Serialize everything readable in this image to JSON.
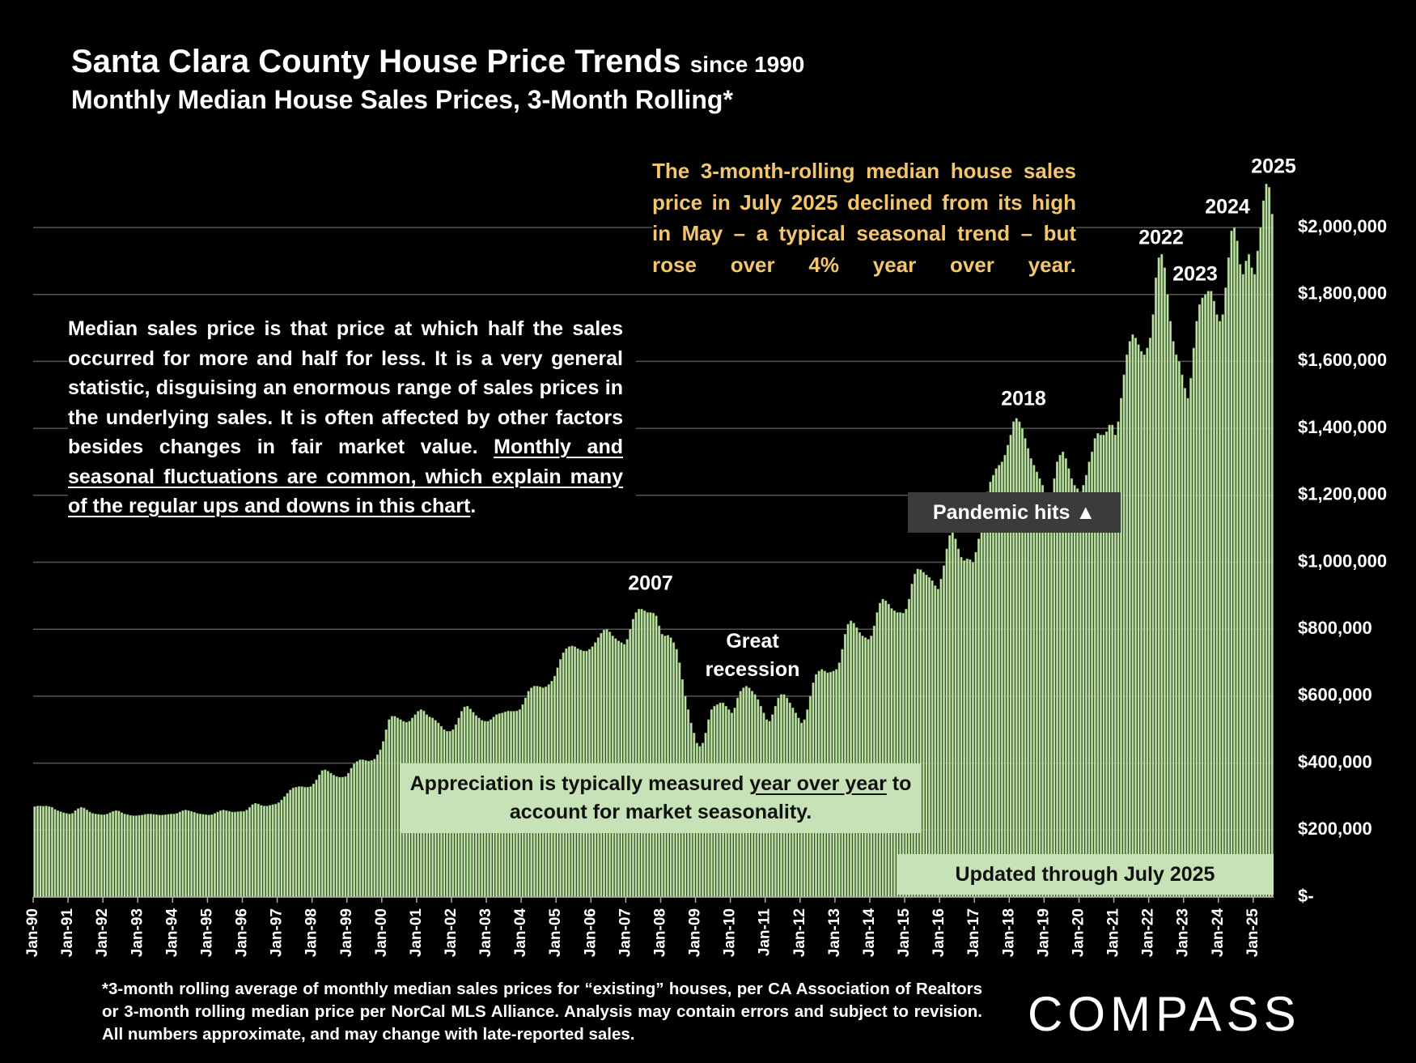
{
  "chart_data": {
    "type": "bar",
    "title": "Santa Clara County House Price Trends",
    "title_suffix": "since 1990",
    "subtitle": "Monthly Median House Sales Prices, 3-Month Rolling*",
    "color": "#c2e2ab",
    "grid": true,
    "ylim": [
      0,
      2200000
    ],
    "yticks": [
      {
        "value": 0,
        "label": "$-"
      },
      {
        "value": 200000,
        "label": "$200,000"
      },
      {
        "value": 400000,
        "label": "$400,000"
      },
      {
        "value": 600000,
        "label": "$600,000"
      },
      {
        "value": 800000,
        "label": "$800,000"
      },
      {
        "value": 1000000,
        "label": "$1,000,000"
      },
      {
        "value": 1200000,
        "label": "$1,200,000"
      },
      {
        "value": 1400000,
        "label": "$1,400,000"
      },
      {
        "value": 1600000,
        "label": "$1,600,000"
      },
      {
        "value": 1800000,
        "label": "$1,800,000"
      },
      {
        "value": 2000000,
        "label": "$2,000,000"
      }
    ],
    "categories": [
      "Jan-90",
      null,
      null,
      null,
      null,
      null,
      null,
      null,
      null,
      null,
      null,
      null,
      "Jan-91",
      null,
      null,
      null,
      null,
      null,
      null,
      null,
      null,
      null,
      null,
      null,
      "Jan-92",
      null,
      null,
      null,
      null,
      null,
      null,
      null,
      null,
      null,
      null,
      null,
      "Jan-93",
      null,
      null,
      null,
      null,
      null,
      null,
      null,
      null,
      null,
      null,
      null,
      "Jan-94",
      null,
      null,
      null,
      null,
      null,
      null,
      null,
      null,
      null,
      null,
      null,
      "Jan-95",
      null,
      null,
      null,
      null,
      null,
      null,
      null,
      null,
      null,
      null,
      null,
      "Jan-96",
      null,
      null,
      null,
      null,
      null,
      null,
      null,
      null,
      null,
      null,
      null,
      "Jan-97",
      null,
      null,
      null,
      null,
      null,
      null,
      null,
      null,
      null,
      null,
      null,
      "Jan-98",
      null,
      null,
      null,
      null,
      null,
      null,
      null,
      null,
      null,
      null,
      null,
      "Jan-99",
      null,
      null,
      null,
      null,
      null,
      null,
      null,
      null,
      null,
      null,
      null,
      "Jan-00",
      null,
      null,
      null,
      null,
      null,
      null,
      null,
      null,
      null,
      null,
      null,
      "Jan-01",
      null,
      null,
      null,
      null,
      null,
      null,
      null,
      null,
      null,
      null,
      null,
      "Jan-02",
      null,
      null,
      null,
      null,
      null,
      null,
      null,
      null,
      null,
      null,
      null,
      "Jan-03",
      null,
      null,
      null,
      null,
      null,
      null,
      null,
      null,
      null,
      null,
      null,
      "Jan-04",
      null,
      null,
      null,
      null,
      null,
      null,
      null,
      null,
      null,
      null,
      null,
      "Jan-05",
      null,
      null,
      null,
      null,
      null,
      null,
      null,
      null,
      null,
      null,
      null,
      "Jan-06",
      null,
      null,
      null,
      null,
      null,
      null,
      null,
      null,
      null,
      null,
      null,
      "Jan-07",
      null,
      null,
      null,
      null,
      null,
      null,
      null,
      null,
      null,
      null,
      null,
      "Jan-08",
      null,
      null,
      null,
      null,
      null,
      null,
      null,
      null,
      null,
      null,
      null,
      "Jan-09",
      null,
      null,
      null,
      null,
      null,
      null,
      null,
      null,
      null,
      null,
      null,
      "Jan-10",
      null,
      null,
      null,
      null,
      null,
      null,
      null,
      null,
      null,
      null,
      null,
      "Jan-11",
      null,
      null,
      null,
      null,
      null,
      null,
      null,
      null,
      null,
      null,
      null,
      "Jan-12",
      null,
      null,
      null,
      null,
      null,
      null,
      null,
      null,
      null,
      null,
      null,
      "Jan-13",
      null,
      null,
      null,
      null,
      null,
      null,
      null,
      null,
      null,
      null,
      null,
      "Jan-14",
      null,
      null,
      null,
      null,
      null,
      null,
      null,
      null,
      null,
      null,
      null,
      "Jan-15",
      null,
      null,
      null,
      null,
      null,
      null,
      null,
      null,
      null,
      null,
      null,
      "Jan-16",
      null,
      null,
      null,
      null,
      null,
      null,
      null,
      null,
      null,
      null,
      null,
      "Jan-17",
      null,
      null,
      null,
      null,
      null,
      null,
      null,
      null,
      null,
      null,
      null,
      "Jan-18",
      null,
      null,
      null,
      null,
      null,
      null,
      null,
      null,
      null,
      null,
      null,
      "Jan-19",
      null,
      null,
      null,
      null,
      null,
      null,
      null,
      null,
      null,
      null,
      null,
      "Jan-20",
      null,
      null,
      null,
      null,
      null,
      null,
      null,
      null,
      null,
      null,
      null,
      "Jan-21",
      null,
      null,
      null,
      null,
      null,
      null,
      null,
      null,
      null,
      null,
      null,
      "Jan-22",
      null,
      null,
      null,
      null,
      null,
      null,
      null,
      null,
      null,
      null,
      null,
      "Jan-23",
      null,
      null,
      null,
      null,
      null,
      null,
      null,
      null,
      null,
      null,
      null,
      "Jan-24",
      null,
      null,
      null,
      null,
      null,
      null,
      null,
      null,
      null,
      null,
      null,
      "Jan-25",
      null,
      null,
      null,
      null,
      null,
      null
    ],
    "values": [
      270000,
      272000,
      272000,
      271000,
      272000,
      270000,
      268000,
      262000,
      258000,
      255000,
      252000,
      250000,
      248000,
      250000,
      258000,
      264000,
      268000,
      266000,
      260000,
      254000,
      250000,
      248000,
      247000,
      246000,
      246000,
      248000,
      252000,
      256000,
      258000,
      257000,
      252000,
      248000,
      246000,
      244000,
      243000,
      243000,
      244000,
      245000,
      247000,
      248000,
      248000,
      247000,
      246000,
      245000,
      245000,
      246000,
      247000,
      248000,
      248000,
      250000,
      254000,
      258000,
      260000,
      258000,
      256000,
      253000,
      250000,
      248000,
      247000,
      246000,
      245000,
      246000,
      250000,
      254000,
      258000,
      260000,
      258000,
      256000,
      254000,
      254000,
      255000,
      256000,
      256000,
      260000,
      268000,
      276000,
      280000,
      278000,
      274000,
      272000,
      272000,
      274000,
      276000,
      278000,
      282000,
      290000,
      300000,
      310000,
      320000,
      326000,
      328000,
      330000,
      330000,
      328000,
      328000,
      330000,
      338000,
      350000,
      365000,
      378000,
      380000,
      376000,
      370000,
      364000,
      360000,
      358000,
      358000,
      360000,
      370000,
      385000,
      398000,
      405000,
      410000,
      410000,
      408000,
      406000,
      408000,
      412000,
      425000,
      440000,
      465000,
      500000,
      530000,
      540000,
      540000,
      535000,
      530000,
      525000,
      522000,
      525000,
      535000,
      545000,
      555000,
      560000,
      556000,
      545000,
      538000,
      535000,
      528000,
      520000,
      510000,
      500000,
      495000,
      495000,
      500000,
      515000,
      535000,
      555000,
      568000,
      570000,
      562000,
      552000,
      542000,
      535000,
      528000,
      525000,
      525000,
      530000,
      538000,
      545000,
      548000,
      550000,
      553000,
      556000,
      555000,
      555000,
      556000,
      560000,
      575000,
      595000,
      615000,
      625000,
      630000,
      630000,
      628000,
      625000,
      628000,
      635000,
      645000,
      660000,
      685000,
      710000,
      730000,
      742000,
      748000,
      750000,
      748000,
      742000,
      738000,
      735000,
      735000,
      740000,
      748000,
      760000,
      775000,
      788000,
      798000,
      800000,
      792000,
      780000,
      772000,
      765000,
      760000,
      755000,
      770000,
      800000,
      830000,
      850000,
      860000,
      860000,
      855000,
      850000,
      850000,
      848000,
      840000,
      810000,
      785000,
      780000,
      782000,
      775000,
      760000,
      740000,
      700000,
      650000,
      600000,
      560000,
      520000,
      490000,
      460000,
      450000,
      460000,
      490000,
      530000,
      560000,
      570000,
      575000,
      580000,
      580000,
      570000,
      560000,
      550000,
      565000,
      595000,
      615000,
      625000,
      630000,
      625000,
      615000,
      605000,
      590000,
      570000,
      550000,
      530000,
      525000,
      545000,
      570000,
      595000,
      605000,
      605000,
      595000,
      580000,
      565000,
      550000,
      535000,
      520000,
      530000,
      560000,
      600000,
      640000,
      665000,
      675000,
      680000,
      675000,
      670000,
      672000,
      675000,
      680000,
      700000,
      740000,
      785000,
      815000,
      825000,
      818000,
      805000,
      790000,
      780000,
      775000,
      770000,
      780000,
      810000,
      850000,
      878000,
      890000,
      885000,
      875000,
      862000,
      855000,
      850000,
      850000,
      848000,
      860000,
      890000,
      935000,
      965000,
      980000,
      978000,
      970000,
      962000,
      955000,
      945000,
      930000,
      920000,
      950000,
      990000,
      1040000,
      1080000,
      1090000,
      1070000,
      1040000,
      1015000,
      1005000,
      1010000,
      1008000,
      1000000,
      1030000,
      1070000,
      1120000,
      1170000,
      1210000,
      1240000,
      1260000,
      1280000,
      1290000,
      1300000,
      1320000,
      1350000,
      1380000,
      1420000,
      1430000,
      1420000,
      1400000,
      1370000,
      1340000,
      1310000,
      1290000,
      1270000,
      1250000,
      1230000,
      1200000,
      1180000,
      1200000,
      1250000,
      1300000,
      1320000,
      1330000,
      1310000,
      1280000,
      1250000,
      1230000,
      1220000,
      1210000,
      1230000,
      1260000,
      1300000,
      1330000,
      1370000,
      1385000,
      1380000,
      1380000,
      1390000,
      1410000,
      1410000,
      1380000,
      1420000,
      1490000,
      1560000,
      1620000,
      1660000,
      1680000,
      1670000,
      1650000,
      1630000,
      1620000,
      1640000,
      1670000,
      1740000,
      1850000,
      1910000,
      1920000,
      1880000,
      1800000,
      1720000,
      1660000,
      1620000,
      1600000,
      1560000,
      1520000,
      1490000,
      1550000,
      1640000,
      1720000,
      1770000,
      1790000,
      1800000,
      1810000,
      1810000,
      1780000,
      1740000,
      1720000,
      1740000,
      1820000,
      1910000,
      1990000,
      2000000,
      1960000,
      1890000,
      1860000,
      1900000,
      1920000,
      1880000,
      1860000,
      1930000,
      2000000,
      2080000,
      2130000,
      2120000,
      2040000
    ],
    "annotations": [
      "2025",
      "2024",
      "2022",
      "2023",
      "2018",
      "2007",
      "Great recession",
      "Pandemic hits ▲"
    ]
  },
  "notes": {
    "seasonal_note": "The 3-month-rolling median house sales price in July 2025 declined from its high in May – a typical seasonal trend – but rose over 4% year over year.",
    "median_note": {
      "text": "Median sales price is that price at which half the sales occurred for more and half for less. It is a very general statistic, disguising an enormous range of sales prices in the underlying sales. It is often affected by other factors besides changes in fair market value. ",
      "underlined": "Monthly and seasonal fluctuations are common, which explain many of the regular ups and downs in this chart",
      "end": "."
    },
    "appreciation_note": {
      "text": "Appreciation is typically measured ",
      "underlined": "year over year",
      "end": " to account for market seasonality."
    },
    "updated_note": "Updated through July 2025",
    "footnote": "*3-month rolling average of monthly median sales prices for “existing” houses, per CA Association of Realtors or 3-month rolling median price per NorCal MLS Alliance. Analysis may contain errors and subject to revision. All numbers approximate, and may change with late-reported sales.",
    "logo": "COMPASS"
  }
}
